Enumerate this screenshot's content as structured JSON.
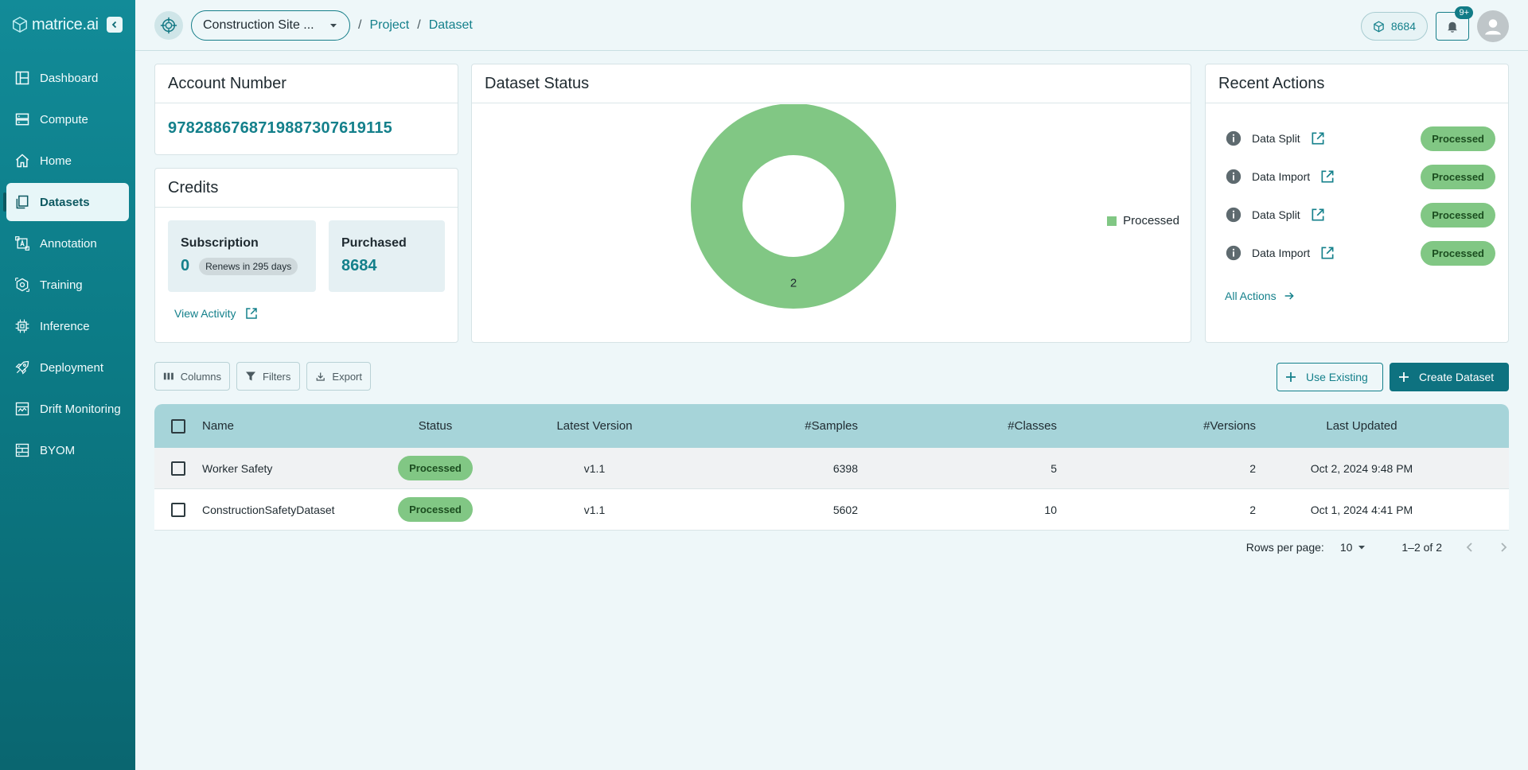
{
  "brand": {
    "name": "matrice.ai"
  },
  "sidebar": {
    "items": [
      {
        "label": "Dashboard",
        "icon": "dashboard-icon",
        "active": false
      },
      {
        "label": "Compute",
        "icon": "server-icon",
        "active": false
      },
      {
        "label": "Home",
        "icon": "home-icon",
        "active": false
      },
      {
        "label": "Datasets",
        "icon": "datasets-icon",
        "active": true
      },
      {
        "label": "Annotation",
        "icon": "annotation-icon",
        "active": false
      },
      {
        "label": "Training",
        "icon": "training-icon",
        "active": false
      },
      {
        "label": "Inference",
        "icon": "chip-icon",
        "active": false
      },
      {
        "label": "Deployment",
        "icon": "rocket-icon",
        "active": false
      },
      {
        "label": "Drift Monitoring",
        "icon": "monitor-icon",
        "active": false
      },
      {
        "label": "BYOM",
        "icon": "byom-icon",
        "active": false
      }
    ]
  },
  "header": {
    "project": "Construction Site ...",
    "breadcrumbs": [
      "Project",
      "Dataset"
    ],
    "credits": "8684",
    "notifications": "9+"
  },
  "account": {
    "title": "Account Number",
    "number": "97828867687198873076191​15"
  },
  "credits": {
    "title": "Credits",
    "subscription_label": "Subscription",
    "subscription_value": "0",
    "renews": "Renews in 295 days",
    "purchased_label": "Purchased",
    "purchased_value": "8684",
    "view_activity": "View Activity"
  },
  "dataset_status": {
    "title": "Dataset Status",
    "chart_data": {
      "type": "pie",
      "labels": [
        "Processed"
      ],
      "values": [
        2
      ],
      "colors": [
        "#81c784"
      ],
      "legend": "right"
    }
  },
  "recent_actions": {
    "title": "Recent Actions",
    "items": [
      {
        "label": "Data Split",
        "status": "Processed"
      },
      {
        "label": "Data Import",
        "status": "Processed"
      },
      {
        "label": "Data Split",
        "status": "Processed"
      },
      {
        "label": "Data Import",
        "status": "Processed"
      }
    ],
    "all_actions": "All Actions"
  },
  "toolbar": {
    "columns": "Columns",
    "filters": "Filters",
    "export": "Export",
    "use_existing": "Use Existing",
    "create_dataset": "Create Dataset"
  },
  "table": {
    "headers": [
      "Name",
      "Status",
      "Latest Version",
      "#Samples",
      "#Classes",
      "#Versions",
      "Last Updated"
    ],
    "rows": [
      {
        "name": "Worker Safety",
        "status": "Processed",
        "version": "v1.1",
        "samples": "6398",
        "classes": "5",
        "versions": "2",
        "updated": "Oct 2, 2024 9:48 PM"
      },
      {
        "name": "ConstructionSafetyDataset",
        "status": "Processed",
        "version": "v1.1",
        "samples": "5602",
        "classes": "10",
        "versions": "2",
        "updated": "Oct 1, 2024 4:41 PM"
      }
    ]
  },
  "pagination": {
    "rows_per_page_label": "Rows per page:",
    "rows_per_page": "10",
    "range": "1–2 of 2"
  },
  "colors": {
    "accent": "#14808b",
    "sidebar": "#0c7b86",
    "processed": "#81c784"
  }
}
